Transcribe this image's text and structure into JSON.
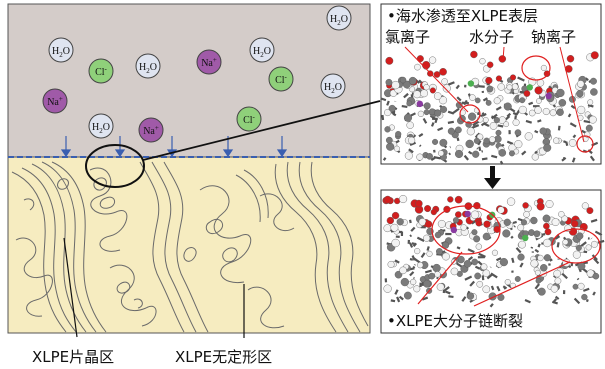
{
  "ions": [
    {
      "type": "water",
      "label": "H",
      "sub": "2",
      "label2": "O"
    },
    {
      "type": "water",
      "label": "H",
      "sub": "2",
      "label2": "O"
    },
    {
      "type": "water",
      "label": "H",
      "sub": "2",
      "label2": "O"
    },
    {
      "type": "water",
      "label": "H",
      "sub": "2",
      "label2": "O"
    },
    {
      "type": "water",
      "label": "H",
      "sub": "2",
      "label2": "O"
    },
    {
      "type": "water",
      "label": "H",
      "sub": "2",
      "label2": "O"
    },
    {
      "type": "chloride",
      "label": "Cl",
      "sup": "-"
    },
    {
      "type": "chloride",
      "label": "Cl",
      "sup": "-"
    },
    {
      "type": "chloride",
      "label": "Cl",
      "sup": "-"
    },
    {
      "type": "sodium",
      "label": "Na",
      "sup": "+"
    },
    {
      "type": "sodium",
      "label": "Na",
      "sup": "+"
    },
    {
      "type": "sodium",
      "label": "Na",
      "sup": "+"
    }
  ],
  "colors": {
    "water_fill": "#dfe4f0",
    "chloride_fill": "#8fd07a",
    "sodium_fill": "#a05aa8",
    "seawater_bg": "#d4ccc9",
    "polymer_bg": "#f6ecc0",
    "arrow_blue": "#3a5fb0",
    "annotation_red": "#e02020"
  },
  "top_right_title": "•海水渗透至XLPE表层",
  "top_right_labels": {
    "chloride": "氯离子",
    "water": "水分子",
    "sodium": "钠离子"
  },
  "bottom_right_label": "•XLPE大分子链断裂",
  "captions": {
    "crystalline": "XLPE片晶区",
    "amorphous": "XLPE无定形区"
  }
}
